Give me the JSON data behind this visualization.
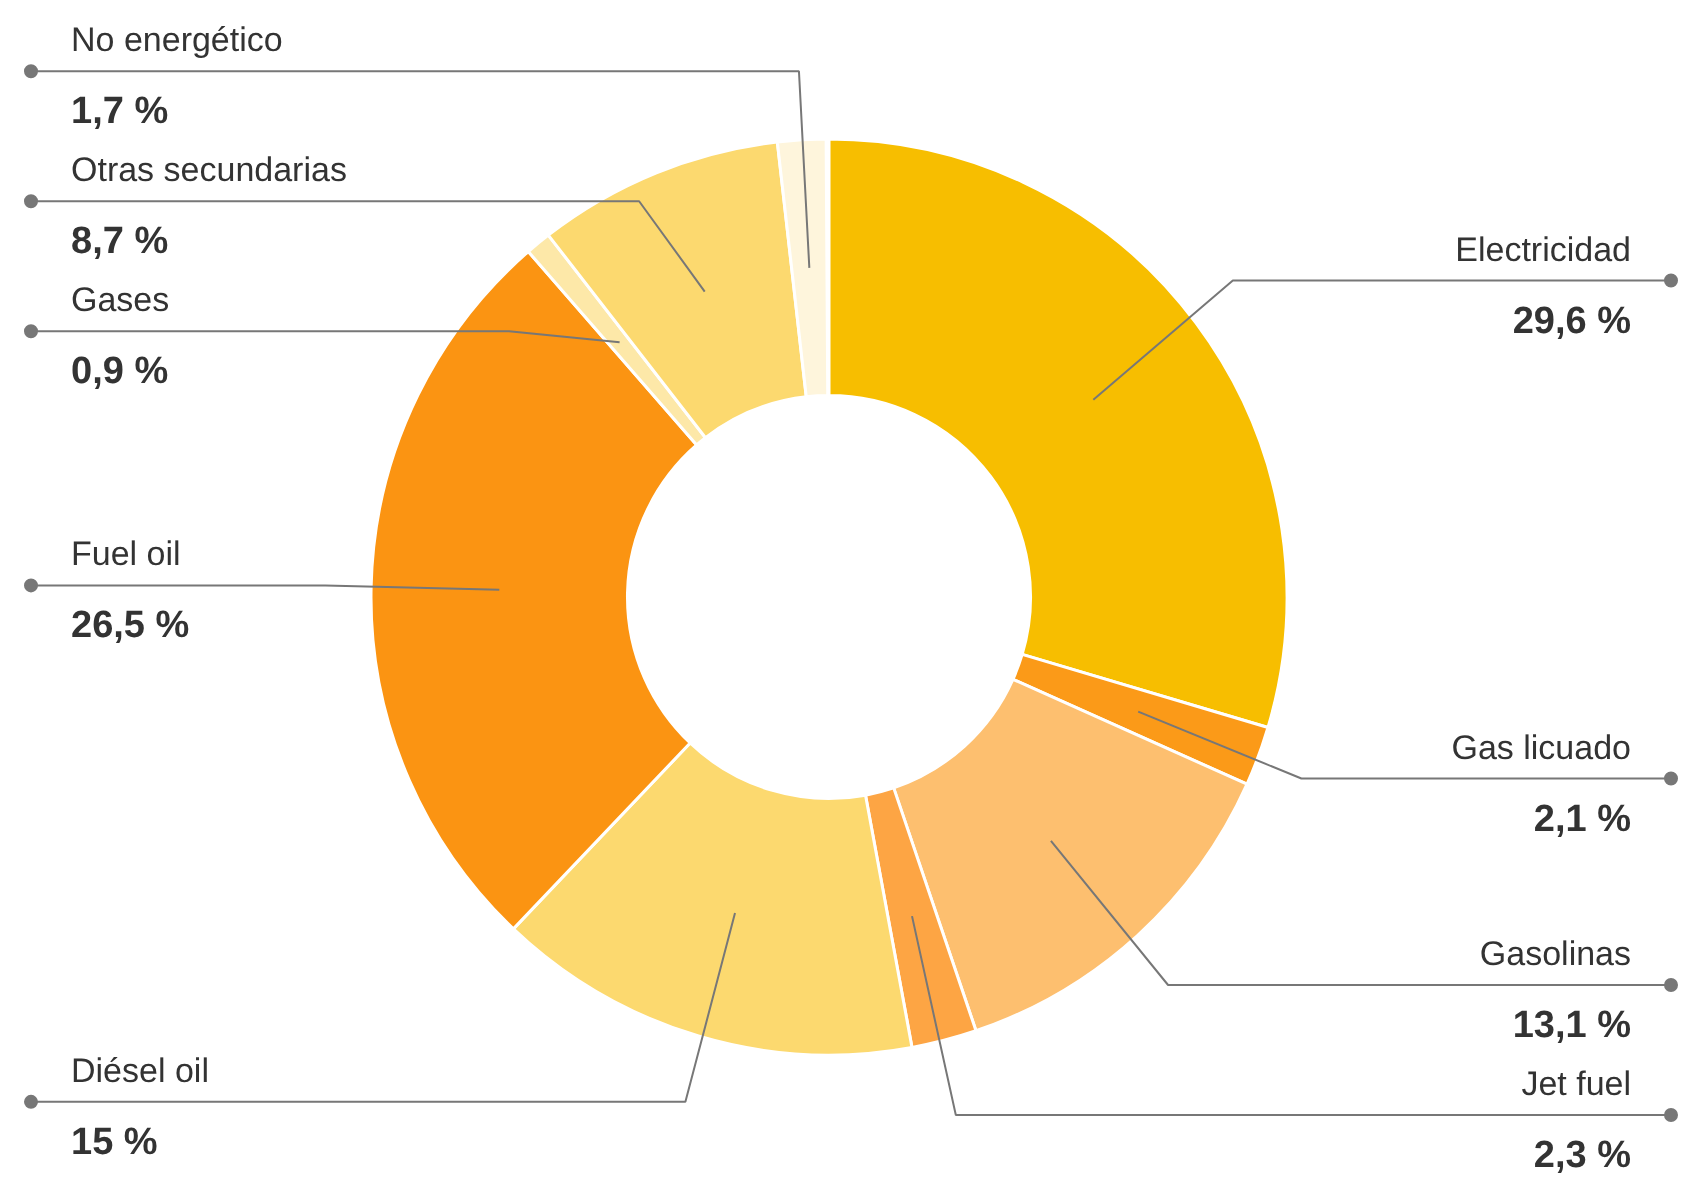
{
  "chart_data": {
    "type": "donut",
    "categories": [
      "Electricidad",
      "Gas licuado",
      "Gasolinas",
      "Jet fuel",
      "Diésel oil",
      "Fuel oil",
      "Gases",
      "Otras secundarias",
      "No energético"
    ],
    "values": [
      29.6,
      2.1,
      13.1,
      2.3,
      15,
      26.5,
      0.9,
      8.7,
      1.7
    ],
    "value_labels": [
      "29,6 %",
      "2,1 %",
      "13,1 %",
      "2,3 %",
      "15 %",
      "26,5 %",
      "0,9 %",
      "8,7 %",
      "1,7 %"
    ],
    "colors": [
      "#f7be00",
      "#fb9a18",
      "#fdbf6f",
      "#fda544",
      "#fcd96f",
      "#fb9412",
      "#fde8a8",
      "#fcd96f",
      "#fef5dc"
    ]
  }
}
